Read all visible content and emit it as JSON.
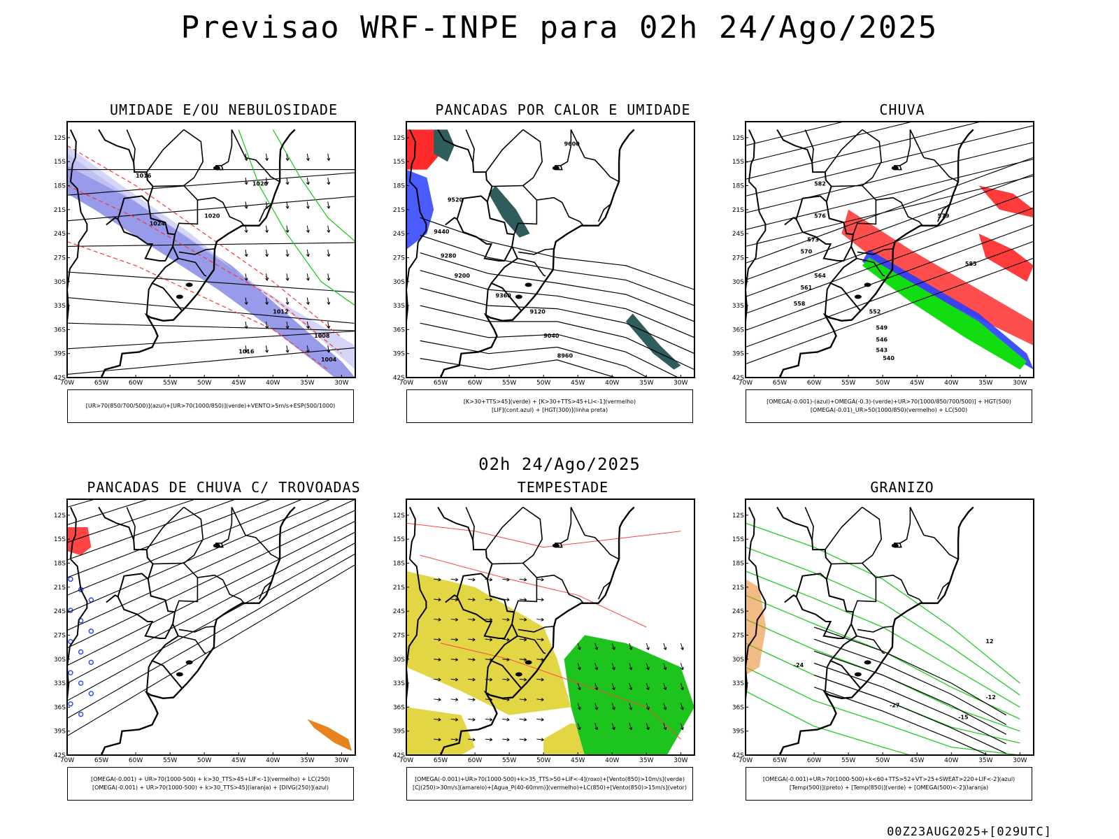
{
  "title": "Previsao WRF-INPE  para 02h 24/Ago/2025",
  "mid_title": "02h 24/Ago/2025",
  "footer": "00Z23AUG2025+[029UTC]",
  "lat_labels": [
    "12S",
    "15S",
    "18S",
    "21S",
    "24S",
    "27S",
    "30S",
    "33S",
    "36S",
    "39S",
    "42S"
  ],
  "lon_labels": [
    "70W",
    "65W",
    "60W",
    "55W",
    "50W",
    "45W",
    "40W",
    "35W",
    "30W"
  ],
  "panels": [
    {
      "id": "umidade",
      "title": "UMIDADE E/OU NEBULOSIDADE",
      "legend": [
        "[UR>70(850/700/500)](azul)+[UR>70(1000/850)](verde)+VENTO>5m/s+ESP(500/1000)"
      ],
      "contour_labels": [
        "1016",
        "1020",
        "1024",
        "1020",
        "1016",
        "1012",
        "1008",
        "1004"
      ]
    },
    {
      "id": "pancadas-calor",
      "title": "PANCADAS POR CALOR E UMIDADE",
      "legend": [
        "[K>30+TTS>45](verde) + [K>30+TTS>45+LI<-1](vermelho)",
        "[LIF](cont.azul) + [HGT(300)](linha preta)"
      ],
      "contour_labels": [
        "9600",
        "9520",
        "9440",
        "9360",
        "9280",
        "9200",
        "9120",
        "9040",
        "8960"
      ]
    },
    {
      "id": "chuva",
      "title": "CHUVA",
      "legend": [
        "[OMEGA(-0.001)-(azul)+OMEGA(-0.3)-(verde)+UR>70(1000/850/700/500)] + HGT(500)",
        "[OMEGA(-0.01)_UR>50(1000/850)(vermelho) + LC(500)"
      ],
      "contour_labels": [
        "585",
        "582",
        "579",
        "576",
        "573",
        "570",
        "564",
        "561",
        "558",
        "552",
        "549",
        "546",
        "543",
        "540"
      ]
    },
    {
      "id": "pancadas-trovoadas",
      "title": "PANCADAS DE CHUVA C/ TROVOADAS",
      "legend": [
        "[OMEGA(-0.001) + UR>70(1000-500) + k>30_TTS>45+LIF<-1](vermelho) + LC(250)",
        "[OMEGA(-0.001) + UR>70(1000-500) + k>30_TTS>45](laranja) + [DIVG(250)](azul)"
      ],
      "contour_labels": []
    },
    {
      "id": "tempestade",
      "title": "TEMPESTADE",
      "legend": [
        "[OMEGA(-0.001)+UR>70(1000-500)+k>35_TTS>50+LIF<-4](roxo)+[Vento(850)>10m/s](verde)",
        "[CJ(250)>30m/s](amarelo)+[Agua_P(40-60mm)](vermelho)+LC(850)+[Vento(850)>15m/s](vetor)"
      ],
      "contour_labels": []
    },
    {
      "id": "granizo",
      "title": "GRANIZO",
      "legend": [
        "[OMEGA(-0.001)+UR>70(1000-500)+k<60+TTS>52+VT>25+SWEAT>220+LIF<-2](azul)",
        "[Temp(500)](preto) + [Temp(850)](verde) + [OMEGA(500)<-2](laranja)"
      ],
      "contour_labels": [
        "-12",
        "-15",
        "-24",
        "-27",
        "12"
      ]
    }
  ]
}
